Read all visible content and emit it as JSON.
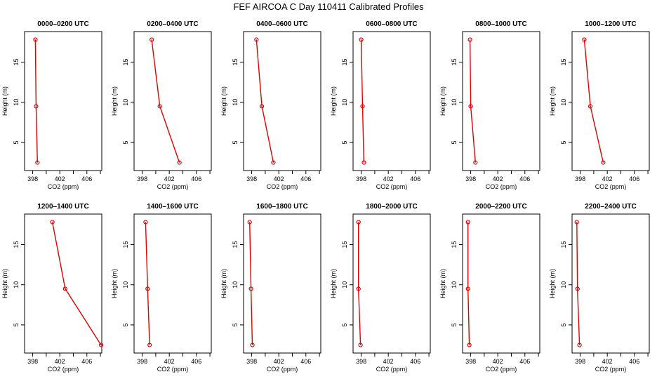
{
  "title": "FEF AIRCOA C  Day 110411  Calibrated Profiles",
  "colors": {
    "series": "#e00000",
    "axis": "#000000"
  },
  "chart_data": [
    {
      "type": "line",
      "title": "0000–0200 UTC",
      "xlabel": "CO2 (ppm)",
      "ylabel": "Height (m)",
      "x": [
        398.7,
        398.5,
        398.4
      ],
      "y": [
        2.5,
        9.5,
        17.8
      ],
      "xlim": [
        396.8,
        408.2
      ],
      "ylim": [
        1.5,
        18.8
      ],
      "xticks": [
        "398",
        "402",
        "406"
      ],
      "yticks": [
        "5",
        "10",
        "15"
      ]
    },
    {
      "type": "line",
      "title": "0200–0400 UTC",
      "xlabel": "CO2 (ppm)",
      "ylabel": "Height (m)",
      "x": [
        403.5,
        400.6,
        399.4
      ],
      "y": [
        2.5,
        9.5,
        17.8
      ],
      "xlim": [
        396.8,
        408.2
      ],
      "ylim": [
        1.5,
        18.8
      ],
      "xticks": [
        "398",
        "402",
        "406"
      ],
      "yticks": [
        "5",
        "10",
        "15"
      ]
    },
    {
      "type": "line",
      "title": "0400–0600 UTC",
      "xlabel": "CO2 (ppm)",
      "ylabel": "Height (m)",
      "x": [
        401.2,
        399.5,
        398.7
      ],
      "y": [
        2.5,
        9.5,
        17.8
      ],
      "xlim": [
        396.8,
        408.2
      ],
      "ylim": [
        1.5,
        18.8
      ],
      "xticks": [
        "398",
        "402",
        "406"
      ],
      "yticks": [
        "5",
        "10",
        "15"
      ]
    },
    {
      "type": "line",
      "title": "0600–0800 UTC",
      "xlabel": "CO2 (ppm)",
      "ylabel": "Height (m)",
      "x": [
        398.4,
        398.2,
        398.0
      ],
      "y": [
        2.5,
        9.5,
        17.8
      ],
      "xlim": [
        396.8,
        408.2
      ],
      "ylim": [
        1.5,
        18.8
      ],
      "xticks": [
        "398",
        "402",
        "406"
      ],
      "yticks": [
        "5",
        "10",
        "15"
      ]
    },
    {
      "type": "line",
      "title": "0800–1000 UTC",
      "xlabel": "CO2 (ppm)",
      "ylabel": "Height (m)",
      "x": [
        398.7,
        398.0,
        397.9
      ],
      "y": [
        2.5,
        9.5,
        17.8
      ],
      "xlim": [
        396.8,
        408.2
      ],
      "ylim": [
        1.5,
        18.8
      ],
      "xticks": [
        "398",
        "402",
        "406"
      ],
      "yticks": [
        "5",
        "10",
        "15"
      ]
    },
    {
      "type": "line",
      "title": "1000–1200 UTC",
      "xlabel": "CO2 (ppm)",
      "ylabel": "Height (m)",
      "x": [
        401.4,
        399.5,
        398.6
      ],
      "y": [
        2.5,
        9.5,
        17.8
      ],
      "xlim": [
        396.8,
        408.2
      ],
      "ylim": [
        1.5,
        18.8
      ],
      "xticks": [
        "398",
        "402",
        "406"
      ],
      "yticks": [
        "5",
        "10",
        "15"
      ]
    },
    {
      "type": "line",
      "title": "1200–1400 UTC",
      "xlabel": "CO2 (ppm)",
      "ylabel": "Height (m)",
      "x": [
        408.1,
        402.8,
        400.9
      ],
      "y": [
        2.5,
        9.5,
        17.8
      ],
      "xlim": [
        396.8,
        408.2
      ],
      "ylim": [
        1.5,
        18.8
      ],
      "xticks": [
        "398",
        "402",
        "406"
      ],
      "yticks": [
        "5",
        "10",
        "15"
      ]
    },
    {
      "type": "line",
      "title": "1400–1600 UTC",
      "xlabel": "CO2 (ppm)",
      "ylabel": "Height (m)",
      "x": [
        399.1,
        398.8,
        398.5
      ],
      "y": [
        2.5,
        9.5,
        17.8
      ],
      "xlim": [
        396.8,
        408.2
      ],
      "ylim": [
        1.5,
        18.8
      ],
      "xticks": [
        "398",
        "402",
        "406"
      ],
      "yticks": [
        "5",
        "10",
        "15"
      ]
    },
    {
      "type": "line",
      "title": "1600–1800 UTC",
      "xlabel": "CO2 (ppm)",
      "ylabel": "Height (m)",
      "x": [
        398.1,
        397.9,
        397.7
      ],
      "y": [
        2.5,
        9.5,
        17.8
      ],
      "xlim": [
        396.8,
        408.2
      ],
      "ylim": [
        1.5,
        18.8
      ],
      "xticks": [
        "398",
        "402",
        "406"
      ],
      "yticks": [
        "5",
        "10",
        "15"
      ]
    },
    {
      "type": "line",
      "title": "1800–2000 UTC",
      "xlabel": "CO2 (ppm)",
      "ylabel": "Height (m)",
      "x": [
        397.9,
        397.6,
        397.6
      ],
      "y": [
        2.5,
        9.5,
        17.8
      ],
      "xlim": [
        396.8,
        408.2
      ],
      "ylim": [
        1.5,
        18.8
      ],
      "xticks": [
        "398",
        "402",
        "406"
      ],
      "yticks": [
        "5",
        "10",
        "15"
      ]
    },
    {
      "type": "line",
      "title": "2000–2200 UTC",
      "xlabel": "CO2 (ppm)",
      "ylabel": "Height (m)",
      "x": [
        397.8,
        397.6,
        397.6
      ],
      "y": [
        2.5,
        9.5,
        17.8
      ],
      "xlim": [
        396.8,
        408.2
      ],
      "ylim": [
        1.5,
        18.8
      ],
      "xticks": [
        "398",
        "402",
        "406"
      ],
      "yticks": [
        "5",
        "10",
        "15"
      ]
    },
    {
      "type": "line",
      "title": "2200–2400 UTC",
      "xlabel": "CO2 (ppm)",
      "ylabel": "Height (m)",
      "x": [
        397.9,
        397.6,
        397.5
      ],
      "y": [
        2.5,
        9.5,
        17.8
      ],
      "xlim": [
        396.8,
        408.2
      ],
      "ylim": [
        1.5,
        18.8
      ],
      "xticks": [
        "398",
        "402",
        "406"
      ],
      "yticks": [
        "5",
        "10",
        "15"
      ]
    }
  ]
}
